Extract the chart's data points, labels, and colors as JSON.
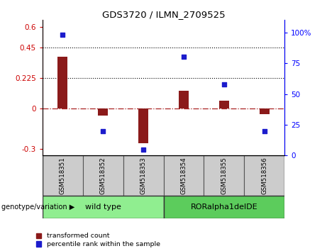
{
  "title": "GDS3720 / ILMN_2709525",
  "samples": [
    "GSM518351",
    "GSM518352",
    "GSM518353",
    "GSM518354",
    "GSM518355",
    "GSM518356"
  ],
  "transformed_counts": [
    0.38,
    -0.055,
    -0.26,
    0.13,
    0.055,
    -0.045
  ],
  "percentile_ranks": [
    98,
    20,
    5,
    80,
    58,
    20
  ],
  "ylim_left": [
    -0.35,
    0.65
  ],
  "ylim_right": [
    0,
    110
  ],
  "yticks_left": [
    -0.3,
    0,
    0.225,
    0.45,
    0.6
  ],
  "yticks_right": [
    0,
    25,
    50,
    75,
    100
  ],
  "hlines": [
    0.225,
    0.45
  ],
  "bar_color": "#8B1A1A",
  "dot_color": "#1C1CCC",
  "zero_line_color": "#AA2222",
  "hline_color": "black",
  "group_label": "genotype/variation",
  "legend_bar": "transformed count",
  "legend_dot": "percentile rank within the sample",
  "sample_box_color": "#CCCCCC",
  "wild_type_color": "#90EE90",
  "ror_color": "#5CCC5C"
}
